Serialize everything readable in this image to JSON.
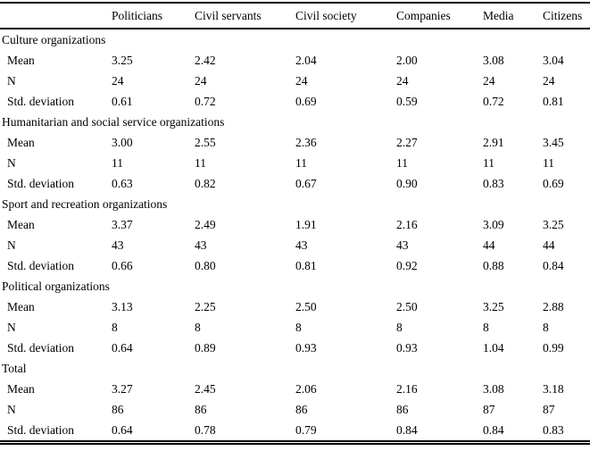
{
  "table": {
    "columns": [
      "",
      "Politicians",
      "Civil servants",
      "Civil society",
      "Companies",
      "Media",
      "Citizens"
    ],
    "row_labels": {
      "mean": "Mean",
      "n": "N",
      "std": "Std. deviation"
    },
    "sections": [
      {
        "label": "Culture organizations",
        "mean": [
          "3.25",
          "2.42",
          "2.04",
          "2.00",
          "3.08",
          "3.04"
        ],
        "n": [
          "24",
          "24",
          "24",
          "24",
          "24",
          "24"
        ],
        "std": [
          "0.61",
          "0.72",
          "0.69",
          "0.59",
          "0.72",
          "0.81"
        ]
      },
      {
        "label": "Humanitarian and social service organizations",
        "mean": [
          "3.00",
          "2.55",
          "2.36",
          "2.27",
          "2.91",
          "3.45"
        ],
        "n": [
          "11",
          "11",
          "11",
          "11",
          "11",
          "11"
        ],
        "std": [
          "0.63",
          "0.82",
          "0.67",
          "0.90",
          "0.83",
          "0.69"
        ]
      },
      {
        "label": "Sport and recreation organizations",
        "mean": [
          "3.37",
          "2.49",
          "1.91",
          "2.16",
          "3.09",
          "3.25"
        ],
        "n": [
          "43",
          "43",
          "43",
          "43",
          "44",
          "44"
        ],
        "std": [
          "0.66",
          "0.80",
          "0.81",
          "0.92",
          "0.88",
          "0.84"
        ]
      },
      {
        "label": "Political organizations",
        "mean": [
          "3.13",
          "2.25",
          "2.50",
          "2.50",
          "3.25",
          "2.88"
        ],
        "n": [
          "8",
          "8",
          "8",
          "8",
          "8",
          "8"
        ],
        "std": [
          "0.64",
          "0.89",
          "0.93",
          "0.93",
          "1.04",
          "0.99"
        ]
      },
      {
        "label": "Total",
        "mean": [
          "3.27",
          "2.45",
          "2.06",
          "2.16",
          "3.08",
          "3.18"
        ],
        "n": [
          "86",
          "86",
          "86",
          "86",
          "87",
          "87"
        ],
        "std": [
          "0.64",
          "0.78",
          "0.79",
          "0.84",
          "0.84",
          "0.83"
        ]
      }
    ]
  }
}
